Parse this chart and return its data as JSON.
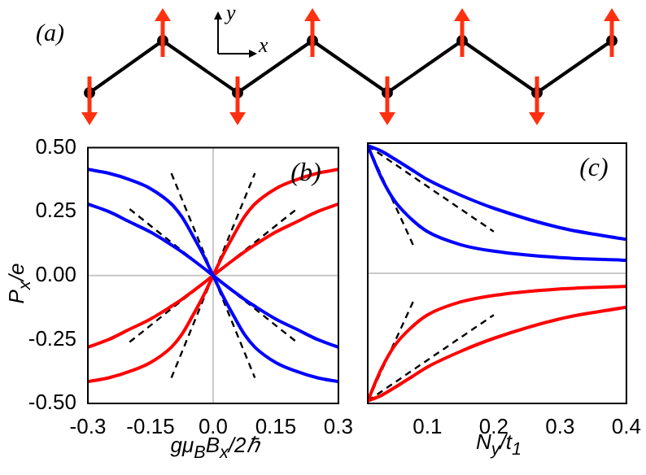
{
  "chart_data": [
    {
      "type": "other",
      "annotations": [
        "(a)",
        "y",
        "x"
      ]
    },
    {
      "type": "line",
      "xlabel": "gμ$_{B}$B$_{x}$/2ℏ",
      "ylabel": "P$_{x}$/e",
      "annotations": [
        "(b)"
      ],
      "xlim": [
        -0.3,
        0.3
      ],
      "xticks": [
        -0.3,
        -0.15,
        {
          "value": 0,
          "label": "0.0"
        },
        0.15,
        0.3
      ],
      "ylim": [
        -0.5,
        0.5
      ],
      "yticks": [
        {
          "value": -0.5,
          "label": "-0.50"
        },
        -0.25,
        {
          "value": 0,
          "label": "0.00"
        },
        0.25,
        {
          "value": 0.5,
          "label": "0.50"
        }
      ],
      "grid": false,
      "legend": false,
      "marker": "none",
      "ref_lines": [
        {
          "axis": "x",
          "value": 0,
          "color": "#c8c8c8"
        },
        {
          "axis": "y",
          "value": 0,
          "color": "#c8c8c8"
        }
      ],
      "x": [
        -0.3,
        -0.25,
        -0.2,
        -0.15,
        -0.1,
        -0.075,
        -0.05,
        -0.025,
        0,
        0.025,
        0.05,
        0.075,
        0.1,
        0.15,
        0.2,
        0.25,
        0.3
      ],
      "series": [
        {
          "color": "#0000ff",
          "values": [
            0.415,
            0.4,
            0.375,
            0.34,
            0.28,
            0.23,
            0.16,
            0.085,
            0,
            -0.085,
            -0.16,
            -0.23,
            -0.28,
            -0.34,
            -0.375,
            -0.4,
            -0.415
          ]
        },
        {
          "color": "#0000ff",
          "values": [
            0.28,
            0.25,
            0.21,
            0.17,
            0.12,
            0.093,
            0.063,
            0.032,
            0,
            -0.032,
            -0.063,
            -0.093,
            -0.12,
            -0.17,
            -0.21,
            -0.25,
            -0.28
          ]
        },
        {
          "color": "#ff0000",
          "values": [
            -0.415,
            -0.4,
            -0.375,
            -0.34,
            -0.28,
            -0.23,
            -0.16,
            -0.085,
            0,
            0.085,
            0.16,
            0.23,
            0.28,
            0.34,
            0.375,
            0.4,
            0.415
          ]
        },
        {
          "color": "#ff0000",
          "values": [
            -0.28,
            -0.25,
            -0.21,
            -0.17,
            -0.12,
            -0.093,
            -0.063,
            -0.032,
            0,
            0.032,
            0.063,
            0.093,
            0.12,
            0.17,
            0.21,
            0.25,
            0.28
          ]
        },
        {
          "color": "#000000",
          "line_style": "dashed",
          "x": [
            -0.1,
            0.1
          ],
          "values": [
            0.4,
            -0.4
          ]
        },
        {
          "color": "#000000",
          "line_style": "dashed",
          "x": [
            -0.2,
            0.2
          ],
          "values": [
            0.26,
            -0.26
          ]
        },
        {
          "color": "#000000",
          "line_style": "dashed",
          "x": [
            -0.1,
            0.1
          ],
          "values": [
            -0.4,
            0.4
          ]
        },
        {
          "color": "#000000",
          "line_style": "dashed",
          "x": [
            -0.2,
            0.2
          ],
          "values": [
            -0.26,
            0.26
          ]
        }
      ]
    },
    {
      "type": "line",
      "xlabel": "N$_{y}$/t$_{1}$",
      "annotations": [
        "(c)"
      ],
      "xlim": [
        0.01,
        0.4
      ],
      "xticks": [
        0.1,
        0.2,
        0.3,
        0.4
      ],
      "ylim": [
        -0.5,
        0.5
      ],
      "yticks": [
        -0.5,
        -0.25,
        0.0,
        0.25,
        0.5
      ],
      "tick_labels": "x",
      "grid": false,
      "legend": false,
      "marker": "none",
      "ref_lines": [
        {
          "axis": "y",
          "value": 0,
          "color": "#c8c8c8"
        }
      ],
      "x": [
        0.01,
        0.03,
        0.05,
        0.075,
        0.1,
        0.15,
        0.2,
        0.3,
        0.4
      ],
      "series": [
        {
          "color": "#0000ff",
          "values": [
            0.49,
            0.47,
            0.44,
            0.4,
            0.36,
            0.3,
            0.25,
            0.175,
            0.13
          ]
        },
        {
          "color": "#0000ff",
          "values": [
            0.49,
            0.37,
            0.28,
            0.21,
            0.16,
            0.11,
            0.085,
            0.06,
            0.05
          ]
        },
        {
          "color": "#ff0000",
          "values": [
            -0.49,
            -0.47,
            -0.44,
            -0.4,
            -0.36,
            -0.3,
            -0.25,
            -0.175,
            -0.13
          ]
        },
        {
          "color": "#ff0000",
          "values": [
            -0.49,
            -0.37,
            -0.28,
            -0.21,
            -0.16,
            -0.11,
            -0.085,
            -0.06,
            -0.05
          ]
        },
        {
          "color": "#000000",
          "line_style": "dashed",
          "x": [
            0.01,
            0.2
          ],
          "values": [
            0.49,
            0.16
          ]
        },
        {
          "color": "#000000",
          "line_style": "dashed",
          "x": [
            0.01,
            0.08
          ],
          "values": [
            0.49,
            0.1
          ]
        },
        {
          "color": "#000000",
          "line_style": "dashed",
          "x": [
            0.01,
            0.2
          ],
          "values": [
            -0.49,
            -0.16
          ]
        },
        {
          "color": "#000000",
          "line_style": "dashed",
          "x": [
            0.01,
            0.08
          ],
          "values": [
            -0.49,
            -0.1
          ]
        }
      ]
    }
  ]
}
